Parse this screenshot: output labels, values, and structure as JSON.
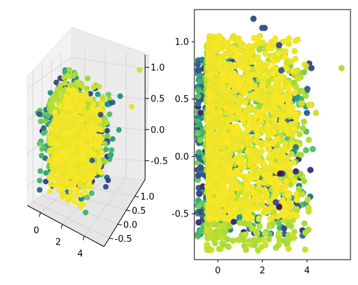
{
  "chart_data": [
    {
      "type": "scatter",
      "projection": "3d",
      "title": "",
      "xlabel": "",
      "ylabel": "",
      "zlabel": "",
      "xlim": [
        -1.2,
        5.8
      ],
      "ylim": [
        -0.8,
        1.6
      ],
      "zlim": [
        -0.8,
        1.2
      ],
      "x_ticks": [
        0,
        2,
        4
      ],
      "y_ticks": [
        -0.5,
        0.0,
        0.5,
        1.0
      ],
      "z_ticks": [
        -0.5,
        0.0,
        0.5,
        1.0
      ],
      "grid": true,
      "colormap": "viridis",
      "colormap_stops": [
        "#440154",
        "#3b528b",
        "#21918c",
        "#5ec962",
        "#a0da39",
        "#fde725"
      ],
      "clusters": [
        {
          "x": [
            -0.6,
            4.2
          ],
          "y": [
            -0.6,
            1.2
          ],
          "z": [
            -0.6,
            0.6
          ],
          "color_range": [
            0.1,
            0.7
          ]
        },
        {
          "x": [
            0.0,
            3.5
          ],
          "y": [
            -0.4,
            1.0
          ],
          "z": [
            -0.5,
            0.7
          ],
          "color_range": [
            0.8,
            0.9
          ]
        },
        {
          "x": [
            0.3,
            3.2
          ],
          "y": [
            -0.5,
            0.9
          ],
          "z": [
            -0.6,
            0.5
          ],
          "color_range": [
            0.95,
            1.0
          ]
        }
      ],
      "outliers": [
        {
          "x": 5.6,
          "y": 1.4,
          "z": 0.95,
          "c": 0.9
        },
        {
          "x": 5.5,
          "y": 1.0,
          "z": 0.55,
          "c": 0.95
        },
        {
          "x": 4.0,
          "y": 0.7,
          "z": 0.6,
          "c": 0.2
        },
        {
          "x": 3.6,
          "y": 0.8,
          "z": 0.5,
          "c": 0.4
        },
        {
          "x": 3.3,
          "y": 0.6,
          "z": 0.4,
          "c": 0.2
        },
        {
          "x": 3.0,
          "y": 0.3,
          "z": -0.2,
          "c": 0.25
        }
      ]
    },
    {
      "type": "scatter",
      "title": "",
      "xlabel": "",
      "ylabel": "",
      "xlim": [
        -1.05,
        5.95
      ],
      "ylim": [
        -0.9,
        1.28
      ],
      "x_ticks": [
        0,
        2,
        4
      ],
      "y_ticks": [
        -0.5,
        0.0,
        0.5,
        1.0
      ],
      "grid": false,
      "colormap": "viridis",
      "colormap_stops": [
        "#440154",
        "#3b528b",
        "#21918c",
        "#5ec962",
        "#a0da39",
        "#fde725"
      ],
      "clusters": [
        {
          "x": [
            -0.9,
            4.3
          ],
          "y": [
            -0.7,
            0.85
          ],
          "color_range": [
            0.1,
            0.7
          ]
        },
        {
          "x": [
            -0.5,
            4.1
          ],
          "y": [
            -0.82,
            1.0
          ],
          "color_range": [
            0.8,
            0.9
          ]
        },
        {
          "x": [
            -0.4,
            3.6
          ],
          "y": [
            -0.55,
            1.05
          ],
          "color_range": [
            0.95,
            1.0
          ]
        }
      ],
      "outliers": [
        {
          "x": 1.6,
          "y": 1.2,
          "c": 0.2
        },
        {
          "x": 2.1,
          "y": 1.12,
          "c": 0.2
        },
        {
          "x": 2.0,
          "y": 1.12,
          "c": 0.2
        },
        {
          "x": 0.7,
          "y": 1.05,
          "c": 0.95
        },
        {
          "x": 2.75,
          "y": 0.97,
          "c": 0.2
        },
        {
          "x": 2.85,
          "y": 0.75,
          "c": 0.25
        },
        {
          "x": 4.1,
          "y": 0.81,
          "c": 0.2
        },
        {
          "x": 3.9,
          "y": 0.8,
          "c": 0.95
        },
        {
          "x": 4.0,
          "y": 0.78,
          "c": 0.9
        },
        {
          "x": 5.55,
          "y": 0.77,
          "c": 0.85
        },
        {
          "x": 4.2,
          "y": 0.77,
          "c": 0.2
        },
        {
          "x": 3.6,
          "y": 0.68,
          "c": 0.9
        },
        {
          "x": 3.5,
          "y": 0.74,
          "c": 0.95
        },
        {
          "x": 3.5,
          "y": 0.08,
          "c": 0.35
        },
        {
          "x": 3.4,
          "y": 0.04,
          "c": 0.4
        },
        {
          "x": 3.3,
          "y": 0.02,
          "c": 0.9
        },
        {
          "x": 2.9,
          "y": -0.15,
          "c": 0.2
        },
        {
          "x": 2.8,
          "y": -0.15,
          "c": 0.05
        },
        {
          "x": 3.5,
          "y": -0.13,
          "c": 0.1
        },
        {
          "x": 2.6,
          "y": -0.4,
          "c": 0.2
        },
        {
          "x": 2.75,
          "y": -0.44,
          "c": 0.05
        },
        {
          "x": 4.2,
          "y": 0.45,
          "c": 0.9
        },
        {
          "x": 4.4,
          "y": 0.38,
          "c": 0.9
        },
        {
          "x": 4.1,
          "y": 0.45,
          "c": 0.95
        }
      ]
    }
  ]
}
